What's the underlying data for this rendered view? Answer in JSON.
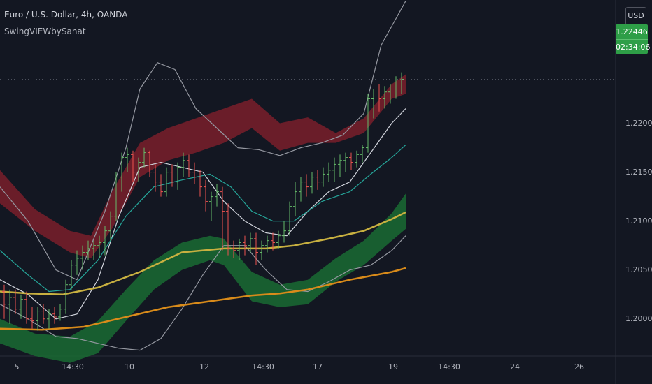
{
  "header": {
    "symbol_title": "Euro / U.S. Dollar, 4h, OANDA",
    "indicator_name": "SwingVIEWbySanat",
    "currency_button": "USD"
  },
  "price_tag": {
    "price": "1.22446",
    "countdown": "02:34:06"
  },
  "colors": {
    "background": "#131722",
    "upper_band": "#7a1e2a",
    "lower_band": "#1a6b32",
    "ma_yellow": "#c8b040",
    "ma_orange": "#d98b1a",
    "ma_teal": "#26a69a",
    "bollinger": "#9598a1",
    "candle_up": "#66bb6a",
    "candle_down": "#ef5350"
  },
  "chart_data": {
    "type": "line",
    "title": "Euro / U.S. Dollar, 4h, OANDA",
    "ylim": [
      1.1962,
      1.2326
    ],
    "y_ticks": [
      "1.20000",
      "1.20500",
      "1.21000",
      "1.21500",
      "1.22000"
    ],
    "x_ticks": [
      "5",
      "14:30",
      "10",
      "12",
      "14:30",
      "17",
      "19",
      "14:30",
      "24",
      "26"
    ],
    "last_price": 1.22446,
    "grid": false,
    "series": [
      {
        "key": "upper_band_top",
        "points": [
          [
            0,
            1.2152
          ],
          [
            50,
            1.2112
          ],
          [
            100,
            1.209
          ],
          [
            130,
            1.2085
          ],
          [
            160,
            1.213
          ],
          [
            200,
            1.218
          ],
          [
            240,
            1.2195
          ],
          [
            280,
            1.2205
          ],
          [
            320,
            1.2215
          ],
          [
            360,
            1.2225
          ],
          [
            400,
            1.22
          ],
          [
            440,
            1.2206
          ],
          [
            480,
            1.219
          ],
          [
            520,
            1.2205
          ],
          [
            560,
            1.224
          ],
          [
            580,
            1.225
          ]
        ]
      },
      {
        "key": "upper_band_bottom",
        "points": [
          [
            0,
            1.2118
          ],
          [
            50,
            1.209
          ],
          [
            100,
            1.2068
          ],
          [
            130,
            1.2062
          ],
          [
            160,
            1.2092
          ],
          [
            200,
            1.2145
          ],
          [
            240,
            1.2162
          ],
          [
            280,
            1.217
          ],
          [
            320,
            1.218
          ],
          [
            360,
            1.2195
          ],
          [
            400,
            1.2172
          ],
          [
            440,
            1.218
          ],
          [
            480,
            1.218
          ],
          [
            520,
            1.219
          ],
          [
            560,
            1.2225
          ],
          [
            580,
            1.223
          ]
        ]
      },
      {
        "key": "lower_band_top",
        "points": [
          [
            0,
            1.2
          ],
          [
            50,
            1.1985
          ],
          [
            100,
            1.1982
          ],
          [
            140,
            1.1998
          ],
          [
            180,
            1.203
          ],
          [
            220,
            1.206
          ],
          [
            260,
            1.2078
          ],
          [
            300,
            1.2085
          ],
          [
            320,
            1.2082
          ],
          [
            360,
            1.2048
          ],
          [
            400,
            1.2035
          ],
          [
            440,
            1.204
          ],
          [
            480,
            1.2062
          ],
          [
            520,
            1.208
          ],
          [
            560,
            1.2108
          ],
          [
            580,
            1.2128
          ]
        ]
      },
      {
        "key": "lower_band_bottom",
        "points": [
          [
            0,
            1.1975
          ],
          [
            50,
            1.1962
          ],
          [
            100,
            1.1955
          ],
          [
            140,
            1.1965
          ],
          [
            180,
            1.1998
          ],
          [
            220,
            1.203
          ],
          [
            260,
            1.205
          ],
          [
            300,
            1.206
          ],
          [
            320,
            1.2055
          ],
          [
            360,
            1.2018
          ],
          [
            400,
            1.2012
          ],
          [
            440,
            1.2015
          ],
          [
            480,
            1.2038
          ],
          [
            520,
            1.2055
          ],
          [
            560,
            1.208
          ],
          [
            580,
            1.2092
          ]
        ]
      },
      {
        "key": "ma_yellow",
        "points": [
          [
            0,
            1.2028
          ],
          [
            40,
            1.2026
          ],
          [
            90,
            1.2025
          ],
          [
            140,
            1.2032
          ],
          [
            200,
            1.2048
          ],
          [
            260,
            1.2068
          ],
          [
            320,
            1.2072
          ],
          [
            380,
            1.2072
          ],
          [
            420,
            1.2075
          ],
          [
            470,
            1.2082
          ],
          [
            520,
            1.209
          ],
          [
            560,
            1.2102
          ],
          [
            580,
            1.2109
          ]
        ]
      },
      {
        "key": "ma_orange",
        "points": [
          [
            0,
            1.199
          ],
          [
            60,
            1.1989
          ],
          [
            120,
            1.1992
          ],
          [
            180,
            1.2002
          ],
          [
            240,
            1.2012
          ],
          [
            300,
            1.2018
          ],
          [
            360,
            1.2024
          ],
          [
            400,
            1.2026
          ],
          [
            440,
            1.203
          ],
          [
            500,
            1.204
          ],
          [
            560,
            1.2048
          ],
          [
            580,
            1.2052
          ]
        ]
      },
      {
        "key": "ma_teal",
        "points": [
          [
            0,
            1.207
          ],
          [
            40,
            1.2045
          ],
          [
            70,
            1.2028
          ],
          [
            100,
            1.203
          ],
          [
            140,
            1.206
          ],
          [
            180,
            1.2105
          ],
          [
            220,
            1.2135
          ],
          [
            260,
            1.2142
          ],
          [
            300,
            1.2148
          ],
          [
            330,
            1.2135
          ],
          [
            360,
            1.211
          ],
          [
            390,
            1.21
          ],
          [
            420,
            1.21
          ],
          [
            460,
            1.212
          ],
          [
            500,
            1.213
          ],
          [
            530,
            1.2148
          ],
          [
            560,
            1.2165
          ],
          [
            580,
            1.2178
          ]
        ]
      },
      {
        "key": "bb_upper",
        "points": [
          [
            0,
            1.2135
          ],
          [
            40,
            1.21
          ],
          [
            80,
            1.205
          ],
          [
            110,
            1.204
          ],
          [
            150,
            1.211
          ],
          [
            180,
            1.2175
          ],
          [
            200,
            1.2235
          ],
          [
            225,
            1.2262
          ],
          [
            250,
            1.2255
          ],
          [
            280,
            1.2215
          ],
          [
            310,
            1.2195
          ],
          [
            340,
            1.2175
          ],
          [
            370,
            1.2173
          ],
          [
            400,
            1.2167
          ],
          [
            430,
            1.2175
          ],
          [
            460,
            1.218
          ],
          [
            490,
            1.2188
          ],
          [
            520,
            1.221
          ],
          [
            545,
            1.228
          ],
          [
            580,
            1.2325
          ]
        ]
      },
      {
        "key": "bb_lower",
        "points": [
          [
            0,
            1.2015
          ],
          [
            40,
            1.2
          ],
          [
            80,
            1.1982
          ],
          [
            110,
            1.198
          ],
          [
            140,
            1.1975
          ],
          [
            170,
            1.197
          ],
          [
            200,
            1.1968
          ],
          [
            230,
            1.198
          ],
          [
            260,
            1.201
          ],
          [
            290,
            1.2045
          ],
          [
            320,
            1.2075
          ],
          [
            350,
            1.2075
          ],
          [
            380,
            1.205
          ],
          [
            410,
            1.203
          ],
          [
            440,
            1.2028
          ],
          [
            470,
            1.2038
          ],
          [
            500,
            1.205
          ],
          [
            530,
            1.2055
          ],
          [
            560,
            1.207
          ],
          [
            580,
            1.2085
          ]
        ]
      },
      {
        "key": "bb_middle",
        "points": [
          [
            0,
            1.204
          ],
          [
            40,
            1.2025
          ],
          [
            80,
            1.2
          ],
          [
            110,
            1.2005
          ],
          [
            140,
            1.204
          ],
          [
            170,
            1.2105
          ],
          [
            200,
            1.2155
          ],
          [
            230,
            1.216
          ],
          [
            260,
            1.2155
          ],
          [
            290,
            1.215
          ],
          [
            320,
            1.212
          ],
          [
            350,
            1.21
          ],
          [
            380,
            1.2088
          ],
          [
            410,
            1.2085
          ],
          [
            440,
            1.211
          ],
          [
            470,
            1.213
          ],
          [
            500,
            1.214
          ],
          [
            530,
            1.217
          ],
          [
            560,
            1.22
          ],
          [
            580,
            1.2215
          ]
        ]
      }
    ],
    "candles": [
      [
        6,
        1.2028,
        1.2035,
        1.2,
        1.2015
      ],
      [
        14,
        1.2015,
        1.203,
        1.1995,
        1.2022
      ],
      [
        22,
        1.2022,
        1.203,
        1.2005,
        1.201
      ],
      [
        30,
        1.201,
        1.2025,
        1.2,
        1.202
      ],
      [
        38,
        1.202,
        1.2028,
        1.1995,
        1.2
      ],
      [
        46,
        1.2,
        1.2012,
        1.199,
        1.1998
      ],
      [
        54,
        1.1998,
        1.2012,
        1.1988,
        1.2008
      ],
      [
        62,
        1.2008,
        1.2015,
        1.1995,
        1.2
      ],
      [
        70,
        1.2,
        1.201,
        1.199,
        1.2005
      ],
      [
        78,
        1.2005,
        1.2012,
        1.1995,
        1.2002
      ],
      [
        86,
        1.2002,
        1.2015,
        1.1998,
        1.201
      ],
      [
        94,
        1.201,
        1.204,
        1.2005,
        1.2035
      ],
      [
        102,
        1.2035,
        1.206,
        1.203,
        1.2055
      ],
      [
        110,
        1.2055,
        1.207,
        1.2045,
        1.2062
      ],
      [
        118,
        1.2062,
        1.2075,
        1.205,
        1.2068
      ],
      [
        126,
        1.2068,
        1.208,
        1.206,
        1.2072
      ],
      [
        134,
        1.2072,
        1.208,
        1.206,
        1.2075
      ],
      [
        142,
        1.2075,
        1.2085,
        1.2062,
        1.2078
      ],
      [
        150,
        1.2078,
        1.2095,
        1.2065,
        1.209
      ],
      [
        158,
        1.209,
        1.211,
        1.208,
        1.2105
      ],
      [
        166,
        1.2105,
        1.215,
        1.21,
        1.2145
      ],
      [
        174,
        1.2145,
        1.217,
        1.213,
        1.2165
      ],
      [
        182,
        1.2165,
        1.2175,
        1.215,
        1.2168
      ],
      [
        190,
        1.2168,
        1.2172,
        1.214,
        1.215
      ],
      [
        198,
        1.215,
        1.2165,
        1.214,
        1.216
      ],
      [
        206,
        1.216,
        1.2175,
        1.2155,
        1.217
      ],
      [
        214,
        1.217,
        1.2172,
        1.2145,
        1.215
      ],
      [
        222,
        1.215,
        1.2158,
        1.213,
        1.214
      ],
      [
        230,
        1.214,
        1.2148,
        1.2125,
        1.213
      ],
      [
        238,
        1.213,
        1.2155,
        1.2125,
        1.215
      ],
      [
        246,
        1.215,
        1.2158,
        1.2135,
        1.214
      ],
      [
        254,
        1.214,
        1.216,
        1.2132,
        1.2155
      ],
      [
        262,
        1.2155,
        1.217,
        1.2145,
        1.2162
      ],
      [
        270,
        1.2162,
        1.2168,
        1.2145,
        1.215
      ],
      [
        278,
        1.215,
        1.216,
        1.2138,
        1.2145
      ],
      [
        286,
        1.2145,
        1.2152,
        1.2125,
        1.2135
      ],
      [
        294,
        1.2135,
        1.2142,
        1.211,
        1.212
      ],
      [
        302,
        1.212,
        1.213,
        1.21,
        1.2125
      ],
      [
        310,
        1.2125,
        1.2138,
        1.2115,
        1.213
      ],
      [
        318,
        1.213,
        1.2135,
        1.207,
        1.211
      ],
      [
        326,
        1.211,
        1.2118,
        1.2065,
        1.2072
      ],
      [
        334,
        1.2072,
        1.208,
        1.2062,
        1.207
      ],
      [
        342,
        1.207,
        1.2082,
        1.206,
        1.2078
      ],
      [
        350,
        1.2078,
        1.2085,
        1.2065,
        1.2075
      ],
      [
        358,
        1.2075,
        1.2088,
        1.2068,
        1.2082
      ],
      [
        366,
        1.2082,
        1.2088,
        1.2055,
        1.2068
      ],
      [
        374,
        1.2068,
        1.208,
        1.206,
        1.2075
      ],
      [
        382,
        1.2075,
        1.2085,
        1.2068,
        1.208
      ],
      [
        390,
        1.208,
        1.2088,
        1.207,
        1.2078
      ],
      [
        398,
        1.2078,
        1.209,
        1.2072,
        1.2085
      ],
      [
        406,
        1.2085,
        1.21,
        1.2078,
        1.209
      ],
      [
        414,
        1.209,
        1.212,
        1.2085,
        1.2115
      ],
      [
        422,
        1.2115,
        1.214,
        1.2105,
        1.213
      ],
      [
        430,
        1.213,
        1.2145,
        1.212,
        1.214
      ],
      [
        438,
        1.214,
        1.2148,
        1.2125,
        1.2135
      ],
      [
        446,
        1.2135,
        1.215,
        1.2128,
        1.2145
      ],
      [
        454,
        1.2145,
        1.2152,
        1.2132,
        1.214
      ],
      [
        462,
        1.214,
        1.2155,
        1.2135,
        1.2148
      ],
      [
        470,
        1.2148,
        1.216,
        1.214,
        1.2152
      ],
      [
        478,
        1.2152,
        1.2165,
        1.214,
        1.2158
      ],
      [
        486,
        1.2158,
        1.2168,
        1.2145,
        1.2162
      ],
      [
        494,
        1.2162,
        1.217,
        1.215,
        1.2165
      ],
      [
        502,
        1.2165,
        1.217,
        1.2152,
        1.216
      ],
      [
        510,
        1.216,
        1.2172,
        1.2155,
        1.2168
      ],
      [
        518,
        1.2168,
        1.2178,
        1.216,
        1.2175
      ],
      [
        526,
        1.2175,
        1.223,
        1.217,
        1.2225
      ],
      [
        534,
        1.2225,
        1.2235,
        1.2205,
        1.223
      ],
      [
        542,
        1.223,
        1.224,
        1.2212,
        1.2225
      ],
      [
        550,
        1.2225,
        1.2238,
        1.2215,
        1.2232
      ],
      [
        558,
        1.2232,
        1.224,
        1.222,
        1.2235
      ],
      [
        566,
        1.2235,
        1.2248,
        1.2225,
        1.224
      ],
      [
        574,
        1.224,
        1.2252,
        1.223,
        1.2245
      ]
    ]
  }
}
